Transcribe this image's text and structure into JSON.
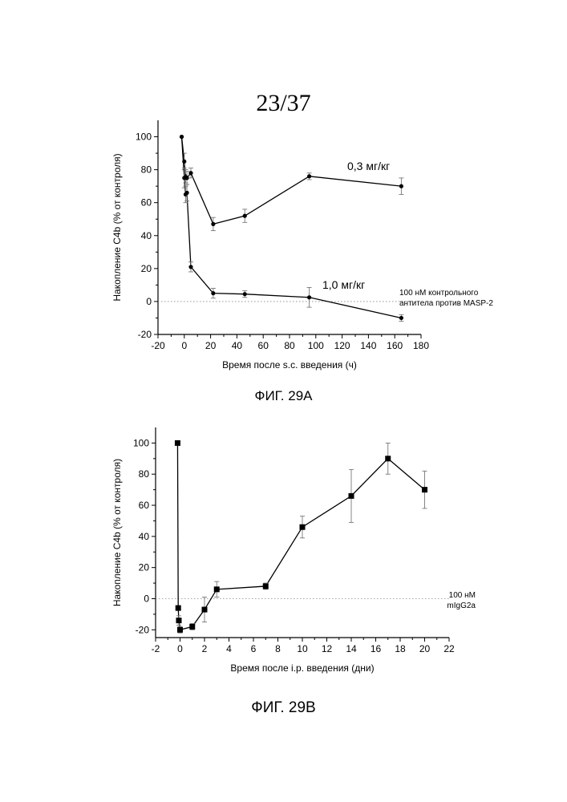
{
  "page": {
    "number": "23/37"
  },
  "figures": [
    {
      "caption": "ФИГ. 29A"
    },
    {
      "caption": "ФИГ. 29B"
    }
  ],
  "chart_data": [
    {
      "type": "line",
      "title": "",
      "xlabel": "Время после s.c. введения (ч)",
      "ylabel": "Накопление C4b (% от контроля)",
      "xlim": [
        -20,
        180
      ],
      "ylim": [
        -20,
        110
      ],
      "xticks": [
        -20,
        0,
        20,
        40,
        60,
        80,
        100,
        120,
        140,
        160,
        180
      ],
      "yticks": [
        -20,
        0,
        20,
        40,
        60,
        80,
        100
      ],
      "reference_line": {
        "y": 0,
        "label_lines": [
          "100 нМ контрольного",
          "антитела против MASP-2"
        ]
      },
      "series": [
        {
          "name": "0,3 мг/кг",
          "x": [
            -2,
            0,
            1,
            2,
            5,
            22,
            46,
            95,
            165
          ],
          "y": [
            100,
            85,
            76,
            75,
            78,
            47,
            52,
            76,
            70
          ],
          "err": [
            0,
            5,
            4,
            4,
            3,
            4,
            4,
            2,
            5
          ]
        },
        {
          "name": "1,0 мг/кг",
          "x": [
            -2,
            0,
            1,
            2,
            5,
            22,
            46,
            95,
            165
          ],
          "y": [
            100,
            75,
            65,
            66,
            21,
            5,
            4.5,
            2.5,
            -10
          ],
          "err": [
            0,
            6,
            5,
            5,
            3,
            3,
            2,
            6,
            2
          ]
        }
      ]
    },
    {
      "type": "line",
      "title": "",
      "xlabel": "Время после i.p. введения (дни)",
      "ylabel": "Накопление C4b (% от контроля)",
      "xlim": [
        -2,
        22
      ],
      "ylim": [
        -25,
        110
      ],
      "xticks": [
        -2,
        0,
        2,
        4,
        6,
        8,
        10,
        12,
        14,
        16,
        18,
        20,
        22
      ],
      "yticks": [
        -20,
        0,
        20,
        40,
        60,
        80,
        100
      ],
      "reference_line": {
        "y": 0,
        "label_lines": [
          "100 нМ",
          "mIgG2a"
        ]
      },
      "series": [
        {
          "name": "",
          "x": [
            -0.2,
            -0.15,
            -0.1,
            0,
            1,
            2,
            3,
            7,
            10,
            14,
            17,
            20
          ],
          "y": [
            100,
            -6,
            -14,
            -20,
            -18,
            -7,
            6,
            8,
            46,
            66,
            90,
            70
          ],
          "err": [
            0,
            0,
            3,
            2,
            2,
            8,
            5,
            2,
            7,
            17,
            10,
            12
          ]
        }
      ]
    }
  ]
}
